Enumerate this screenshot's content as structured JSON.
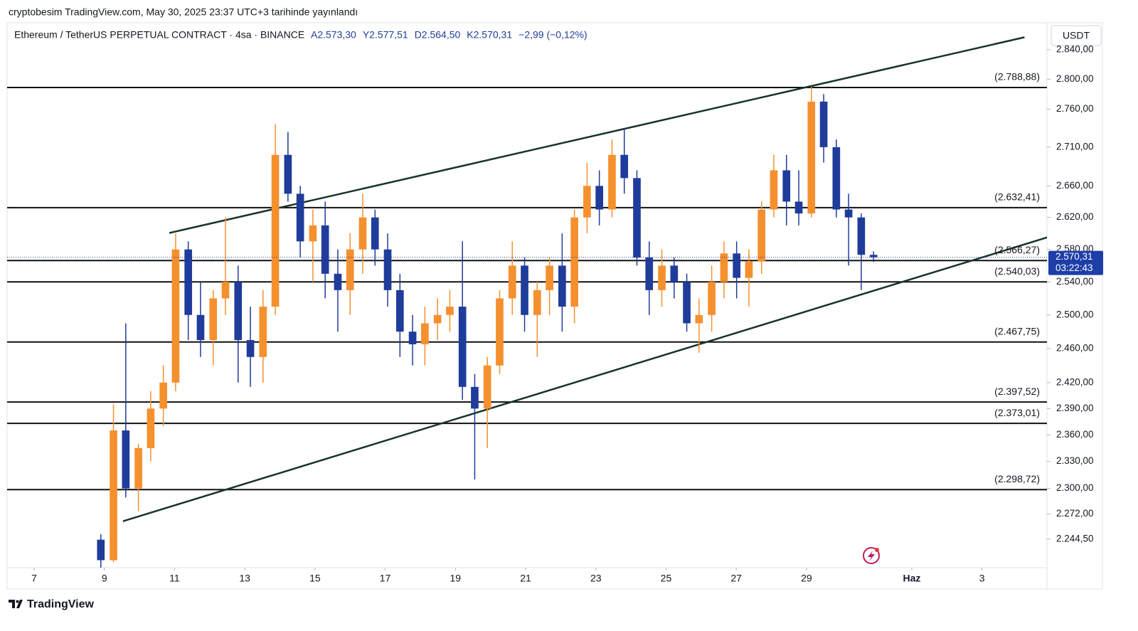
{
  "header": {
    "published": "cryptobesim TradingView.com, May 30, 2025 23:37 UTC+3 tarihinde yayınlandı",
    "symbol": "Ethereum / TetherUS PERPETUAL CONTRACT · 4sa · BINANCE",
    "ohlc_labels": [
      "A2.573,30",
      "Y2.577,51",
      "D2.564,50",
      "K2.570,31",
      "−2,99 (−0,12%)"
    ],
    "currency": "USDT",
    "brand": "TradingView"
  },
  "chart_data": {
    "type": "candlestick",
    "log": true,
    "grid": false,
    "up_color": "#f5902e",
    "down_color": "#1f3c9b",
    "xlim": [
      6.23,
      35.85
    ],
    "xticks": [
      7,
      9,
      11,
      13,
      15,
      17,
      19,
      21,
      23,
      25,
      27,
      29,
      {
        "value": 32,
        "label": "Haz"
      },
      {
        "value": 34,
        "label": "3"
      }
    ],
    "ylim": [
      2214,
      2877
    ],
    "yticks": [
      {
        "value": 2244.5,
        "label": "2.244,50"
      },
      {
        "value": 2272,
        "label": "2.272,00"
      },
      {
        "value": 2300,
        "label": "2.300,00"
      },
      {
        "value": 2330,
        "label": "2.330,00"
      },
      {
        "value": 2360,
        "label": "2.360,00"
      },
      {
        "value": 2390,
        "label": "2.390,00"
      },
      {
        "value": 2420,
        "label": "2.420,00"
      },
      {
        "value": 2460,
        "label": "2.460,00"
      },
      {
        "value": 2500,
        "label": "2.500,00"
      },
      {
        "value": 2540,
        "label": "2.540,00"
      },
      {
        "value": 2580,
        "label": "2.580,00"
      },
      {
        "value": 2620,
        "label": "2.620,00"
      },
      {
        "value": 2660,
        "label": "2.660,00"
      },
      {
        "value": 2710,
        "label": "2.710,00"
      },
      {
        "value": 2760,
        "label": "2.760,00"
      },
      {
        "value": 2800,
        "label": "2.800,00"
      },
      {
        "value": 2840,
        "label": "2.840,00"
      }
    ],
    "x": [
      8.9,
      9.26,
      9.61,
      9.97,
      10.32,
      10.68,
      11.03,
      11.39,
      11.74,
      12.1,
      12.45,
      12.81,
      13.16,
      13.52,
      13.87,
      14.23,
      14.58,
      14.94,
      15.29,
      15.65,
      16.0,
      16.36,
      16.71,
      17.07,
      17.42,
      17.78,
      18.13,
      18.49,
      18.84,
      19.2,
      19.55,
      19.91,
      20.26,
      20.62,
      20.97,
      21.33,
      21.68,
      22.04,
      22.39,
      22.75,
      23.1,
      23.46,
      23.81,
      24.17,
      24.52,
      24.88,
      25.23,
      25.59,
      25.94,
      26.3,
      26.65,
      27.01,
      27.36,
      27.72,
      28.07,
      28.43,
      28.78,
      29.14,
      29.49,
      29.85,
      30.2,
      30.56,
      30.91
    ],
    "ohlc": [
      [
        2244,
        2250,
        2214,
        2222
      ],
      [
        2222,
        2395,
        2220,
        2365
      ],
      [
        2365,
        2490,
        2290,
        2300
      ],
      [
        2300,
        2350,
        2275,
        2345
      ],
      [
        2345,
        2410,
        2330,
        2390
      ],
      [
        2390,
        2440,
        2370,
        2420
      ],
      [
        2420,
        2600,
        2410,
        2580
      ],
      [
        2580,
        2590,
        2470,
        2500
      ],
      [
        2500,
        2540,
        2450,
        2470
      ],
      [
        2470,
        2530,
        2440,
        2520
      ],
      [
        2520,
        2620,
        2500,
        2540
      ],
      [
        2540,
        2560,
        2420,
        2470
      ],
      [
        2470,
        2510,
        2415,
        2450
      ],
      [
        2450,
        2530,
        2420,
        2510
      ],
      [
        2510,
        2740,
        2500,
        2700
      ],
      [
        2700,
        2730,
        2640,
        2650
      ],
      [
        2650,
        2660,
        2570,
        2590
      ],
      [
        2590,
        2630,
        2540,
        2610
      ],
      [
        2610,
        2640,
        2520,
        2550
      ],
      [
        2550,
        2580,
        2480,
        2530
      ],
      [
        2530,
        2600,
        2500,
        2580
      ],
      [
        2580,
        2650,
        2550,
        2620
      ],
      [
        2620,
        2630,
        2560,
        2580
      ],
      [
        2580,
        2600,
        2510,
        2530
      ],
      [
        2530,
        2550,
        2450,
        2480
      ],
      [
        2480,
        2500,
        2440,
        2465
      ],
      [
        2465,
        2510,
        2440,
        2490
      ],
      [
        2490,
        2520,
        2470,
        2500
      ],
      [
        2500,
        2530,
        2480,
        2510
      ],
      [
        2510,
        2590,
        2400,
        2415
      ],
      [
        2415,
        2430,
        2310,
        2390
      ],
      [
        2390,
        2450,
        2345,
        2440
      ],
      [
        2440,
        2530,
        2430,
        2520
      ],
      [
        2520,
        2590,
        2500,
        2560
      ],
      [
        2560,
        2570,
        2480,
        2500
      ],
      [
        2500,
        2540,
        2450,
        2530
      ],
      [
        2530,
        2570,
        2500,
        2560
      ],
      [
        2560,
        2600,
        2480,
        2510
      ],
      [
        2510,
        2630,
        2490,
        2620
      ],
      [
        2620,
        2690,
        2600,
        2660
      ],
      [
        2660,
        2680,
        2610,
        2630
      ],
      [
        2630,
        2720,
        2620,
        2700
      ],
      [
        2700,
        2735,
        2650,
        2670
      ],
      [
        2670,
        2680,
        2560,
        2570
      ],
      [
        2570,
        2590,
        2500,
        2530
      ],
      [
        2530,
        2580,
        2510,
        2560
      ],
      [
        2560,
        2570,
        2520,
        2540
      ],
      [
        2540,
        2550,
        2480,
        2490
      ],
      [
        2490,
        2520,
        2455,
        2500
      ],
      [
        2500,
        2560,
        2480,
        2540
      ],
      [
        2540,
        2590,
        2520,
        2575
      ],
      [
        2575,
        2590,
        2520,
        2545
      ],
      [
        2545,
        2580,
        2510,
        2565
      ],
      [
        2565,
        2640,
        2550,
        2630
      ],
      [
        2630,
        2700,
        2620,
        2680
      ],
      [
        2680,
        2700,
        2610,
        2640
      ],
      [
        2640,
        2680,
        2610,
        2625
      ],
      [
        2625,
        2790,
        2620,
        2770
      ],
      [
        2770,
        2780,
        2690,
        2710
      ],
      [
        2710,
        2720,
        2620,
        2630
      ],
      [
        2630,
        2650,
        2560,
        2620
      ],
      [
        2620,
        2625,
        2530,
        2573.3
      ],
      [
        2573.3,
        2577.51,
        2564.5,
        2570.31
      ]
    ],
    "levels": [
      {
        "value": 2788.88,
        "label": "(2.788,88)"
      },
      {
        "value": 2632.41,
        "label": "(2.632,41)"
      },
      {
        "value": 2566.27,
        "label": "(2.566,27)"
      },
      {
        "value": 2540.03,
        "label": "(2.540,03)"
      },
      {
        "value": 2467.75,
        "label": "(2.467,75)"
      },
      {
        "value": 2397.52,
        "label": "(2.397,52)"
      },
      {
        "value": 2373.01,
        "label": "(2.373,01)"
      },
      {
        "value": 2298.72,
        "label": "(2.298,72)"
      }
    ],
    "trendlines": [
      {
        "x": [
          10.85,
          35.21
        ],
        "y": [
          2600.5,
          2857
        ]
      },
      {
        "x": [
          9.53,
          35.86
        ],
        "y": [
          2264,
          2595
        ]
      }
    ],
    "trend_color": "#17342a",
    "level_color": "#111111",
    "last_price": {
      "value": 2570.31,
      "label": "2.570,31"
    },
    "countdown": "03:22:43"
  }
}
